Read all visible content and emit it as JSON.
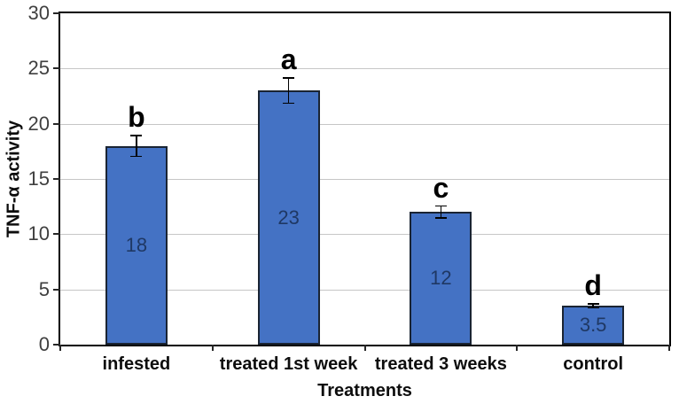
{
  "chart_data": {
    "type": "bar",
    "title": "",
    "xlabel": "Treatments",
    "ylabel": "TNF-α activity",
    "categories": [
      "infested",
      "treated 1st week",
      "treated 3 weeks",
      "control"
    ],
    "values": [
      18,
      23,
      12,
      3.5
    ],
    "value_labels": [
      "18",
      "23",
      "12",
      "3.5"
    ],
    "sig_letters": [
      "b",
      "a",
      "c",
      "d"
    ],
    "error_bars_est": [
      1,
      1.2,
      0.6,
      0.25
    ],
    "ylim": [
      0,
      30
    ],
    "yticks": [
      0,
      5,
      10,
      15,
      20,
      25,
      30
    ],
    "grid": "horizontal",
    "legend": "none",
    "colors": {
      "bar_fill": "#4472C4",
      "bar_border": "#1A2433",
      "value_label": "#1F3864",
      "sig_letter": "#000000",
      "gridline": "#C6C6C6",
      "axis_frame": "#000000",
      "tick_label": "#3F3F3F",
      "background": "#FFFFFF"
    }
  }
}
